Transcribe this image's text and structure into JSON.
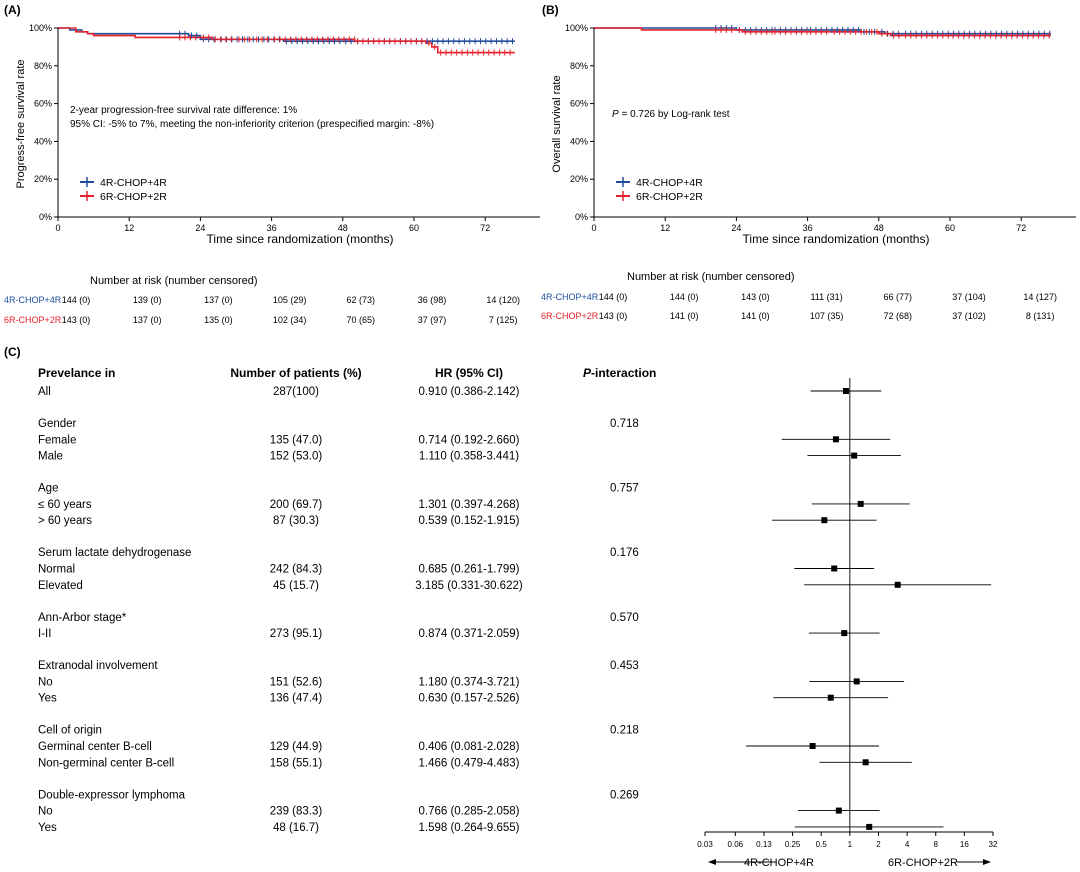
{
  "panel_a": {
    "label": "(A)",
    "ylabel": "Progress-free survival rate",
    "xlabel": "Time since randomization (months)",
    "x_ticks": [
      "0",
      "12",
      "24",
      "36",
      "48",
      "60",
      "72"
    ],
    "y_ticks": [
      "0%",
      "20%",
      "40%",
      "60%",
      "80%",
      "100%"
    ],
    "annotation_lines": [
      "2-year progression-free survival rate difference: 1%",
      "95% CI: -5% to 7%, meeting the non-inferiority criterion (prespecified margin: -8%)"
    ],
    "legend": [
      "4R-CHOP+4R",
      "6R-CHOP+2R"
    ],
    "risk_title": "Number at risk (number censored)",
    "risk_rows": [
      {
        "label": "4R-CHOP+4R",
        "values": [
          "144 (0)",
          "139 (0)",
          "137 (0)",
          "105 (29)",
          "62 (73)",
          "36 (98)",
          "14 (120)"
        ]
      },
      {
        "label": "6R-CHOP+2R",
        "values": [
          "143 (0)",
          "137 (0)",
          "135 (0)",
          "102 (34)",
          "70 (65)",
          "37 (97)",
          "7 (125)"
        ]
      }
    ]
  },
  "panel_b": {
    "label": "(B)",
    "ylabel": "Overall survival rate",
    "xlabel": "Time since randomization (months)",
    "x_ticks": [
      "0",
      "12",
      "24",
      "36",
      "48",
      "60",
      "72"
    ],
    "y_ticks": [
      "0%",
      "20%",
      "40%",
      "60%",
      "80%",
      "100%"
    ],
    "annotation_p": "P",
    "annotation_rest": " = 0.726 by Log-rank test",
    "legend": [
      "4R-CHOP+4R",
      "6R-CHOP+2R"
    ],
    "risk_title": "Number at risk (number censored)",
    "risk_rows": [
      {
        "label": "4R-CHOP+4R",
        "values": [
          "144 (0)",
          "144 (0)",
          "143 (0)",
          "111 (31)",
          "66 (77)",
          "37 (104)",
          "14 (127)"
        ]
      },
      {
        "label": "6R-CHOP+2R",
        "values": [
          "143 (0)",
          "141 (0)",
          "141 (0)",
          "107 (35)",
          "72 (68)",
          "37 (102)",
          "8 (131)"
        ]
      }
    ]
  },
  "panel_c": {
    "label": "(C)",
    "headers": {
      "col1": "Prevelance in",
      "col2": "Number of patients (%)",
      "col3": "HR (95% CI)",
      "col4_p": "P",
      "col4_rest": "-interaction"
    },
    "x_ticks": [
      "0.03",
      "0.06",
      "0.13",
      "0.25",
      "0.5",
      "1",
      "2",
      "4",
      "8",
      "16",
      "32"
    ],
    "arrow_left": "4R-CHOP+4R",
    "arrow_right": "6R-CHOP+2R"
  },
  "colors": {
    "arm_4r": "#1f4e9c",
    "arm_6r": "#e8202a",
    "forest": "#000000"
  },
  "chart_data": [
    {
      "type": "line",
      "title": "",
      "xlabel": "Time since randomization (months)",
      "ylabel": "Progress-free survival rate",
      "xlim": [
        0,
        78
      ],
      "ylim": [
        0,
        100
      ],
      "grid": false,
      "legend_position": "bottom-left",
      "series": [
        {
          "name": "4R-CHOP+4R",
          "x": [
            0,
            2,
            4,
            5,
            8,
            20,
            22,
            24,
            27,
            35,
            38,
            48,
            50,
            77
          ],
          "y": [
            100,
            99,
            98,
            97,
            97,
            97,
            96,
            94,
            94,
            94,
            93,
            93,
            93,
            93
          ]
        },
        {
          "name": "6R-CHOP+2R",
          "x": [
            0,
            3,
            5,
            6,
            10,
            13,
            24,
            26,
            30,
            33,
            36,
            50,
            62,
            63,
            64,
            77
          ],
          "y": [
            100,
            98,
            97,
            96,
            96,
            95,
            95,
            94,
            94,
            94,
            94,
            93,
            92,
            90,
            87,
            87
          ]
        }
      ],
      "annotations": [
        "2-year progression-free survival rate difference: 1%",
        "95% CI: -5% to 7%, meeting the non-inferiority criterion (prespecified margin: -8%)"
      ]
    },
    {
      "type": "line",
      "title": "",
      "xlabel": "Time since randomization (months)",
      "ylabel": "Overall survival rate",
      "xlim": [
        0,
        78
      ],
      "ylim": [
        0,
        100
      ],
      "grid": false,
      "legend_position": "bottom-left",
      "series": [
        {
          "name": "4R-CHOP+4R",
          "x": [
            0,
            12,
            24,
            25,
            30,
            36,
            45,
            48,
            49,
            52,
            77
          ],
          "y": [
            100,
            100,
            99,
            99,
            99,
            99,
            98,
            98,
            97,
            97,
            97
          ]
        },
        {
          "name": "6R-CHOP+2R",
          "x": [
            0,
            8,
            24,
            25,
            30,
            36,
            40,
            48,
            50,
            52,
            60,
            77
          ],
          "y": [
            100,
            99,
            99,
            98,
            98,
            98,
            98,
            97,
            96,
            96,
            96,
            96
          ]
        }
      ],
      "annotations": [
        "P = 0.726 by Log-rank test"
      ]
    },
    {
      "type": "forest",
      "x_scale": "log2",
      "xlim": [
        0.03,
        32
      ],
      "reference_line": 1,
      "rows": [
        {
          "kind": "item",
          "label": "All",
          "n": "287(100)",
          "hr_text": "0.910 (0.386-2.142)",
          "hr": 0.91,
          "lo": 0.386,
          "hi": 2.142
        },
        {
          "kind": "group",
          "label": "Gender",
          "p": "0.718"
        },
        {
          "kind": "item",
          "label": "Female",
          "n": "135 (47.0)",
          "hr_text": "0.714 (0.192-2.660)",
          "hr": 0.714,
          "lo": 0.192,
          "hi": 2.66
        },
        {
          "kind": "item",
          "label": "Male",
          "n": "152 (53.0)",
          "hr_text": "1.110 (0.358-3.441)",
          "hr": 1.11,
          "lo": 0.358,
          "hi": 3.441
        },
        {
          "kind": "group",
          "label": "Age",
          "p": "0.757"
        },
        {
          "kind": "item",
          "label": "≤ 60 years",
          "n": "200 (69.7)",
          "hr_text": "1.301 (0.397-4.268)",
          "hr": 1.301,
          "lo": 0.397,
          "hi": 4.268
        },
        {
          "kind": "item",
          "label": "> 60 years",
          "n": "87 (30.3)",
          "hr_text": "0.539 (0.152-1.915)",
          "hr": 0.539,
          "lo": 0.152,
          "hi": 1.915
        },
        {
          "kind": "group",
          "label": "Serum lactate dehydrogenase",
          "p": "0.176"
        },
        {
          "kind": "item",
          "label": "Normal",
          "n": "242 (84.3)",
          "hr_text": "0.685 (0.261-1.799)",
          "hr": 0.685,
          "lo": 0.261,
          "hi": 1.799
        },
        {
          "kind": "item",
          "label": "Elevated",
          "n": "45 (15.7)",
          "hr_text": "3.185 (0.331-30.622)",
          "hr": 3.185,
          "lo": 0.331,
          "hi": 30.622
        },
        {
          "kind": "group",
          "label": "Ann-Arbor stage*",
          "p": "0.570"
        },
        {
          "kind": "item",
          "label": "I-II",
          "n": "273 (95.1)",
          "hr_text": "0.874 (0.371-2.059)",
          "hr": 0.874,
          "lo": 0.371,
          "hi": 2.059
        },
        {
          "kind": "group",
          "label": "Extranodal involvement",
          "p": "0.453"
        },
        {
          "kind": "item",
          "label": "No",
          "n": "151 (52.6)",
          "hr_text": "1.180 (0.374-3.721)",
          "hr": 1.18,
          "lo": 0.374,
          "hi": 3.721
        },
        {
          "kind": "item",
          "label": "Yes",
          "n": "136 (47.4)",
          "hr_text": "0.630 (0.157-2.526)",
          "hr": 0.63,
          "lo": 0.157,
          "hi": 2.526
        },
        {
          "kind": "group",
          "label": "Cell of origin",
          "p": "0.218"
        },
        {
          "kind": "item",
          "label": "Germinal center B-cell",
          "n": "129 (44.9)",
          "hr_text": "0.406 (0.081-2.028)",
          "hr": 0.406,
          "lo": 0.081,
          "hi": 2.028
        },
        {
          "kind": "item",
          "label": "Non-germinal center B-cell",
          "n": "158 (55.1)",
          "hr_text": "1.466 (0.479-4.483)",
          "hr": 1.466,
          "lo": 0.479,
          "hi": 4.483
        },
        {
          "kind": "group",
          "label": "Double-expressor lymphoma",
          "p": "0.269"
        },
        {
          "kind": "item",
          "label": "No",
          "n": "239 (83.3)",
          "hr_text": "0.766 (0.285-2.058)",
          "hr": 0.766,
          "lo": 0.285,
          "hi": 2.058
        },
        {
          "kind": "item",
          "label": "Yes",
          "n": "48 (16.7)",
          "hr_text": "1.598 (0.264-9.655)",
          "hr": 1.598,
          "lo": 0.264,
          "hi": 9.655
        }
      ]
    }
  ]
}
